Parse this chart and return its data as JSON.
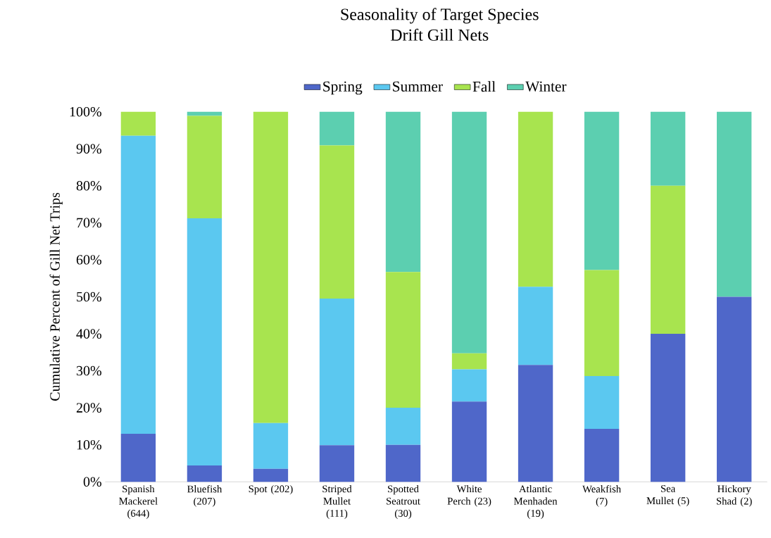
{
  "chart_data": {
    "type": "bar",
    "stacked": true,
    "title": "Seasonality of Target Species",
    "subtitle": "Drift Gill Nets",
    "ylabel": "Cumulative Percent of Gill Net Trips",
    "categories": [
      "Spanish Mackerel (644)",
      "Bluefish (207)",
      "Spot (202)",
      "Striped Mullet (111)",
      "Spotted Seatrout (30)",
      "White Perch (23)",
      "Atlantic Menhaden (19)",
      "Weakfish (7)",
      "Sea Mullet (5)",
      "Hickory Shad (2)"
    ],
    "series": [
      {
        "name": "Spring",
        "color": "#4f67c9",
        "values": [
          13,
          4.4,
          3.5,
          9.9,
          10,
          21.7,
          31.6,
          14.3,
          40,
          50
        ]
      },
      {
        "name": "Summer",
        "color": "#5bc8f0",
        "values": [
          80.5,
          66.8,
          12.4,
          39.6,
          10,
          8.7,
          21.1,
          14.3,
          0,
          0
        ]
      },
      {
        "name": "Fall",
        "color": "#a8e44f",
        "values": [
          6.5,
          27.7,
          84.1,
          41.4,
          36.7,
          4.3,
          47.3,
          28.6,
          40,
          0
        ]
      },
      {
        "name": "Winter",
        "color": "#5ccfb0",
        "values": [
          0,
          1.1,
          0,
          9.1,
          43.3,
          65.3,
          0,
          42.8,
          20,
          50
        ]
      }
    ],
    "ylim": [
      0,
      100
    ],
    "yticks": [
      {
        "value": 0,
        "label": "0%"
      },
      {
        "value": 10,
        "label": "10%"
      },
      {
        "value": 20,
        "label": "20%"
      },
      {
        "value": 30,
        "label": "30%"
      },
      {
        "value": 40,
        "label": "40%"
      },
      {
        "value": 50,
        "label": "50%"
      },
      {
        "value": 60,
        "label": "60%"
      },
      {
        "value": 70,
        "label": "70%"
      },
      {
        "value": 80,
        "label": "80%"
      },
      {
        "value": 90,
        "label": "90%"
      },
      {
        "value": 100,
        "label": "100%"
      }
    ],
    "legend": "top"
  }
}
